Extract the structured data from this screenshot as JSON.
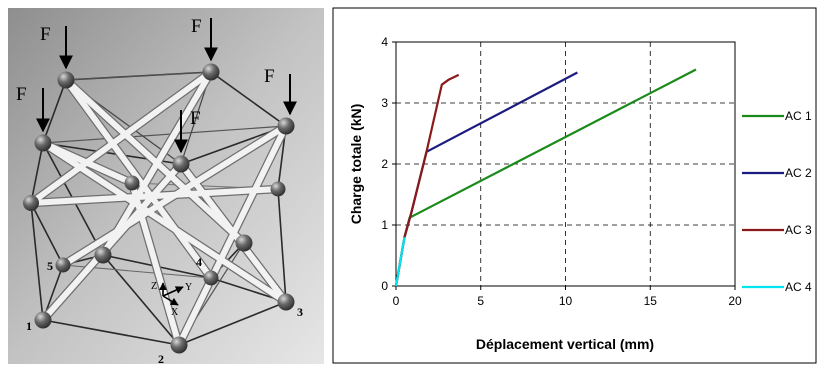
{
  "structure": {
    "force_label": "F",
    "axis_labels": {
      "z": "Z",
      "y": "Y",
      "x": "X"
    },
    "node_labels": [
      "1",
      "2",
      "3",
      "4",
      "5"
    ],
    "colors": {
      "background": "#b4b4b4",
      "strut": "#f2f2f2",
      "cable": "#2a2a2a",
      "node": "#555555"
    }
  },
  "chart_data": {
    "type": "line",
    "title": "",
    "xlabel": "Déplacement vertical (mm)",
    "ylabel": "Charge totale (kN)",
    "xlim": [
      0,
      20
    ],
    "ylim": [
      0,
      4
    ],
    "xticks": [
      "0",
      "5",
      "10",
      "15",
      "20"
    ],
    "yticks": [
      "0",
      "1",
      "2",
      "3",
      "4"
    ],
    "grid": true,
    "grid_style": "dashed",
    "legend_position": "right",
    "series": [
      {
        "name": "AC 1",
        "color": "#1a8a1a",
        "x": [
          0,
          0.5,
          0.8,
          17.7
        ],
        "y": [
          0,
          0.8,
          1.12,
          3.55
        ]
      },
      {
        "name": "AC 2",
        "color": "#1c1c80",
        "x": [
          0,
          0.5,
          0.9,
          1.8,
          10.7
        ],
        "y": [
          0,
          0.8,
          1.2,
          2.2,
          3.5
        ]
      },
      {
        "name": "AC 3",
        "color": "#8b1a1a",
        "x": [
          0,
          0.5,
          0.9,
          1.8,
          2.7,
          3.1,
          3.7
        ],
        "y": [
          0,
          0.8,
          1.2,
          2.2,
          3.3,
          3.38,
          3.46
        ]
      },
      {
        "name": "AC 4",
        "color": "#00e5f0",
        "x": [
          0,
          0.5
        ],
        "y": [
          0,
          0.8
        ]
      }
    ]
  }
}
